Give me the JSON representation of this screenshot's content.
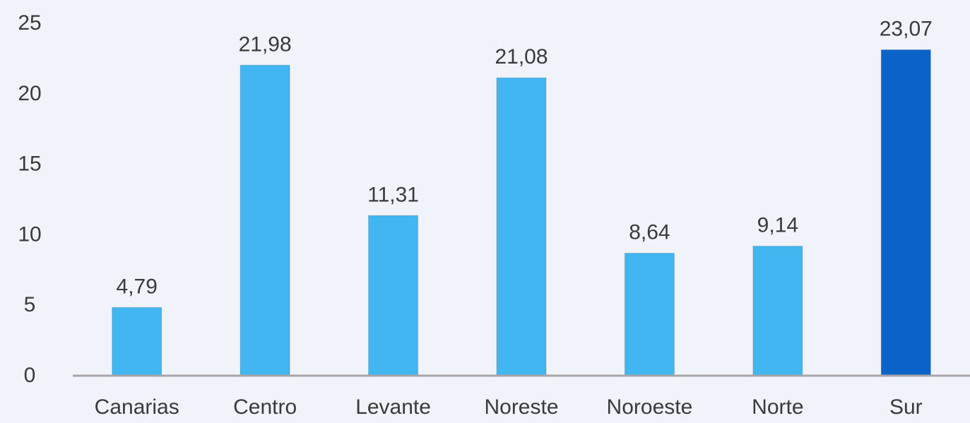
{
  "chart_data": {
    "type": "bar",
    "categories": [
      "Canarias",
      "Centro",
      "Levante",
      "Noreste",
      "Noroeste",
      "Norte",
      "Sur"
    ],
    "values": [
      4.79,
      21.98,
      11.31,
      21.08,
      8.64,
      9.14,
      23.07
    ],
    "value_labels": [
      "4,79",
      "21,98",
      "11,31",
      "21,08",
      "8,64",
      "9,14",
      "23,07"
    ],
    "yticks": [
      0,
      5,
      10,
      15,
      20,
      25
    ],
    "ylim": [
      0,
      25
    ],
    "title": "",
    "xlabel": "",
    "ylabel": "",
    "grid": false,
    "bar_colors": [
      "#41b6f1",
      "#41b6f1",
      "#41b6f1",
      "#41b6f1",
      "#41b6f1",
      "#41b6f1",
      "#0a63c8"
    ],
    "axis_color": "#a6a6a6",
    "background": "#f0f3f9"
  }
}
